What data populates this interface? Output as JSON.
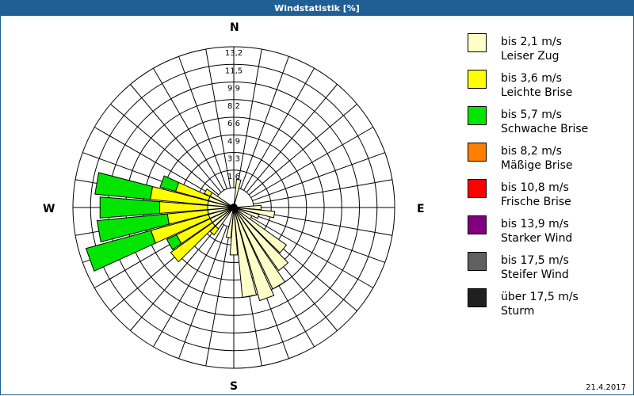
{
  "window": {
    "title": "Windstatistik [%]"
  },
  "footer": {
    "date": "21.4.2017"
  },
  "compass": {
    "n": "N",
    "e": "E",
    "s": "S",
    "w": "W"
  },
  "legend": [
    {
      "range": "bis 2,1 m/s",
      "name": "Leiser Zug",
      "color": "#ffffc8"
    },
    {
      "range": "bis 3,6 m/s",
      "name": "Leichte Brise",
      "color": "#ffff00"
    },
    {
      "range": "bis 5,7 m/s",
      "name": "Schwache Brise",
      "color": "#00e600"
    },
    {
      "range": "bis 8,2 m/s",
      "name": "Mäßige Brise",
      "color": "#ff8000"
    },
    {
      "range": "bis 10,8 m/s",
      "name": "Frische Brise",
      "color": "#ff0000"
    },
    {
      "range": "bis 13,9 m/s",
      "name": "Starker Wind",
      "color": "#800080"
    },
    {
      "range": "bis 17,5 m/s",
      "name": "Steifer Wind",
      "color": "#606060"
    },
    {
      "range": "über 17,5 m/s",
      "name": "Sturm",
      "color": "#202020"
    }
  ],
  "chart_data": {
    "type": "polar-bar",
    "title": "Windstatistik [%]",
    "radial_ticks": [
      "1,6",
      "3,3",
      "4,9",
      "6,6",
      "8,2",
      "9,9",
      "11,5",
      "13,2"
    ],
    "rmax": 13.2,
    "direction_sector_deg": 10,
    "series_names": [
      "bis 2,1 m/s",
      "bis 3,6 m/s",
      "bis 5,7 m/s",
      "bis 8,2 m/s",
      "bis 10,8 m/s",
      "bis 13,9 m/s",
      "bis 17,5 m/s",
      "über 17,5 m/s"
    ],
    "sectors": [
      {
        "dir": 10,
        "values": [
          0.8,
          0,
          0
        ]
      },
      {
        "dir": 90,
        "values": [
          0.7,
          0,
          0
        ]
      },
      {
        "dir": 100,
        "values": [
          2.0,
          0,
          0
        ]
      },
      {
        "dir": 110,
        "values": [
          0.6,
          0,
          0
        ]
      },
      {
        "dir": 130,
        "values": [
          4.2,
          0,
          0
        ]
      },
      {
        "dir": 140,
        "values": [
          5.4,
          0,
          0
        ]
      },
      {
        "dir": 150,
        "values": [
          6.6,
          0,
          0
        ]
      },
      {
        "dir": 160,
        "values": [
          7.2,
          0,
          0
        ]
      },
      {
        "dir": 170,
        "values": [
          6.6,
          0,
          0
        ]
      },
      {
        "dir": 180,
        "values": [
          2.6,
          0,
          0
        ]
      },
      {
        "dir": 190,
        "values": [
          1.0,
          0,
          0
        ]
      },
      {
        "dir": 220,
        "values": [
          0.6,
          0.7,
          0
        ]
      },
      {
        "dir": 230,
        "values": [
          0.6,
          4.8,
          0
        ]
      },
      {
        "dir": 240,
        "values": [
          0.6,
          3.5,
          1.0
        ]
      },
      {
        "dir": 250,
        "values": [
          0.6,
          5.6,
          6.3
        ]
      },
      {
        "dir": 260,
        "values": [
          0.6,
          3.8,
          6.6
        ]
      },
      {
        "dir": 270,
        "values": [
          0.6,
          4.5,
          5.6
        ]
      },
      {
        "dir": 280,
        "values": [
          0.6,
          5.4,
          5.2
        ]
      },
      {
        "dir": 290,
        "values": [
          0.6,
          3.2,
          1.5
        ]
      },
      {
        "dir": 300,
        "values": [
          0.6,
          0.6,
          0
        ]
      }
    ]
  }
}
